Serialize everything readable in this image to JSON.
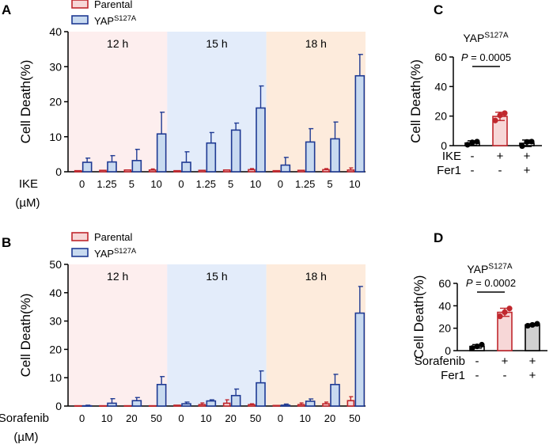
{
  "colors": {
    "parental_edge": "#c0272d",
    "parental_fill": "#f7d7d7",
    "yap_edge": "#1f3a93",
    "yap_fill": "#c8daf0",
    "bg_12h": "#fdeeee",
    "bg_15h": "#e3ecfa",
    "bg_18h": "#fdebdc",
    "summary_ctrl_fill": "#ffffff",
    "summary_treat_fill": "#f7d7d7",
    "summary_treat_edge": "#c0272d",
    "summary_gray_fill": "#d0d0d0",
    "text": "#000000"
  },
  "chart_data": [
    {
      "id": "A",
      "panel_label": "A",
      "type": "bar",
      "ylabel": "Cell Death(%)",
      "ylim": [
        0,
        40
      ],
      "yticks": [
        0,
        10,
        20,
        30,
        40
      ],
      "legend": [
        "Parental",
        "YAP",
        "S127A"
      ],
      "xlabel_lines": [
        "IKE",
        "(µM)"
      ],
      "group_labels": [
        "12 h",
        "15 h",
        "18 h"
      ],
      "categories": [
        "0",
        "1.25",
        "5",
        "10"
      ],
      "groups": [
        {
          "label": "12 h",
          "parental": [
            {
              "v": 0.3,
              "e": 0
            },
            {
              "v": 0.4,
              "e": 0
            },
            {
              "v": 0.5,
              "e": 0
            },
            {
              "v": 0.5,
              "e": 0.3
            }
          ],
          "yap": [
            {
              "v": 2.7,
              "e": 1.2
            },
            {
              "v": 2.8,
              "e": 1.8
            },
            {
              "v": 3.2,
              "e": 3.2
            },
            {
              "v": 10.8,
              "e": 6.2
            }
          ]
        },
        {
          "label": "15 h",
          "parental": [
            {
              "v": 0.3,
              "e": 0
            },
            {
              "v": 0.4,
              "e": 0
            },
            {
              "v": 0.5,
              "e": 0
            },
            {
              "v": 0.6,
              "e": 0.3
            }
          ],
          "yap": [
            {
              "v": 2.7,
              "e": 3.0
            },
            {
              "v": 8.2,
              "e": 3.0
            },
            {
              "v": 11.9,
              "e": 2.0
            },
            {
              "v": 18.2,
              "e": 6.3
            }
          ]
        },
        {
          "label": "18 h",
          "parental": [
            {
              "v": 0.3,
              "e": 0
            },
            {
              "v": 0.4,
              "e": 0
            },
            {
              "v": 0.6,
              "e": 0.3
            },
            {
              "v": 0.5,
              "e": 0.6
            }
          ],
          "yap": [
            {
              "v": 1.9,
              "e": 2.2
            },
            {
              "v": 8.5,
              "e": 3.8
            },
            {
              "v": 9.4,
              "e": 4.8
            },
            {
              "v": 27.4,
              "e": 6.1
            }
          ]
        }
      ]
    },
    {
      "id": "B",
      "panel_label": "B",
      "type": "bar",
      "ylabel": "Cell Death(%)",
      "ylim": [
        0,
        50
      ],
      "yticks": [
        0,
        10,
        20,
        30,
        40,
        50
      ],
      "legend": [
        "Parental",
        "YAP",
        "S127A"
      ],
      "xlabel_lines": [
        "Sorafenib",
        "(µM)"
      ],
      "group_labels": [
        "12 h",
        "15 h",
        "18 h"
      ],
      "categories": [
        "0",
        "10",
        "20",
        "50"
      ],
      "groups": [
        {
          "label": "12 h",
          "parental": [
            {
              "v": 0.1,
              "e": 0
            },
            {
              "v": 0.1,
              "e": 0
            },
            {
              "v": 0.1,
              "e": 0
            },
            {
              "v": 0.1,
              "e": 0
            }
          ],
          "yap": [
            {
              "v": 0.1,
              "e": 0.2
            },
            {
              "v": 1.0,
              "e": 1.6
            },
            {
              "v": 1.9,
              "e": 1.1
            },
            {
              "v": 7.6,
              "e": 2.8
            }
          ]
        },
        {
          "label": "15 h",
          "parental": [
            {
              "v": 0.3,
              "e": 0
            },
            {
              "v": 0.5,
              "e": 0.6
            },
            {
              "v": 1.0,
              "e": 1.2
            },
            {
              "v": 0.5,
              "e": 0.3
            }
          ],
          "yap": [
            {
              "v": 0.8,
              "e": 0.6
            },
            {
              "v": 1.8,
              "e": 0.4
            },
            {
              "v": 3.7,
              "e": 2.3
            },
            {
              "v": 8.2,
              "e": 4.2
            }
          ]
        },
        {
          "label": "18 h",
          "parental": [
            {
              "v": 0.2,
              "e": 0
            },
            {
              "v": 0.5,
              "e": 0.6
            },
            {
              "v": 0.8,
              "e": 0.6
            },
            {
              "v": 1.9,
              "e": 1.4
            }
          ],
          "yap": [
            {
              "v": 0.3,
              "e": 0.4
            },
            {
              "v": 1.7,
              "e": 0.8
            },
            {
              "v": 7.6,
              "e": 3.6
            },
            {
              "v": 32.8,
              "e": 9.4
            }
          ]
        }
      ]
    },
    {
      "id": "C",
      "panel_label": "C",
      "type": "bar",
      "title": [
        "YAP",
        "S127A"
      ],
      "ylabel": "Cell Death(%)",
      "ylim": [
        0,
        60
      ],
      "yticks": [
        0,
        20,
        40,
        60
      ],
      "p_value": [
        "P",
        " = 0.0005"
      ],
      "row_labels": [
        "IKE",
        "Fer1"
      ],
      "row_marks": [
        [
          "-",
          "+",
          "+"
        ],
        [
          "-",
          "-",
          "+"
        ]
      ],
      "bars": [
        {
          "value": 1.8,
          "err": 1.5,
          "points": [
            0.6,
            2.7,
            2.2
          ],
          "style": "ctrl"
        },
        {
          "value": 19.8,
          "err": 2.8,
          "points": [
            17.0,
            22.0,
            20.5
          ],
          "style": "treat"
        },
        {
          "value": 1.6,
          "err": 2.2,
          "points": [
            -0.3,
            2.7,
            2.5
          ],
          "style": "ctrl"
        }
      ]
    },
    {
      "id": "D",
      "panel_label": "D",
      "type": "bar",
      "title": [
        "YAP",
        "S127A"
      ],
      "ylabel": "Cell Death(%)",
      "ylim": [
        0,
        60
      ],
      "yticks": [
        0,
        20,
        40,
        60
      ],
      "p_value": [
        "P",
        " = 0.0002"
      ],
      "row_labels": [
        "Sorafenib",
        "Fer1"
      ],
      "row_marks": [
        [
          "-",
          "+",
          "+"
        ],
        [
          "-",
          "-",
          "+"
        ]
      ],
      "bars": [
        {
          "value": 3.8,
          "err": 1.6,
          "points": [
            2.3,
            5.3,
            3.8
          ],
          "style": "ctrl"
        },
        {
          "value": 34.2,
          "err": 3.6,
          "points": [
            30.6,
            37.6,
            34.3
          ],
          "style": "treat"
        },
        {
          "value": 23.0,
          "err": 0.9,
          "points": [
            22.2,
            23.9,
            23.0
          ],
          "style": "gray"
        }
      ]
    }
  ]
}
